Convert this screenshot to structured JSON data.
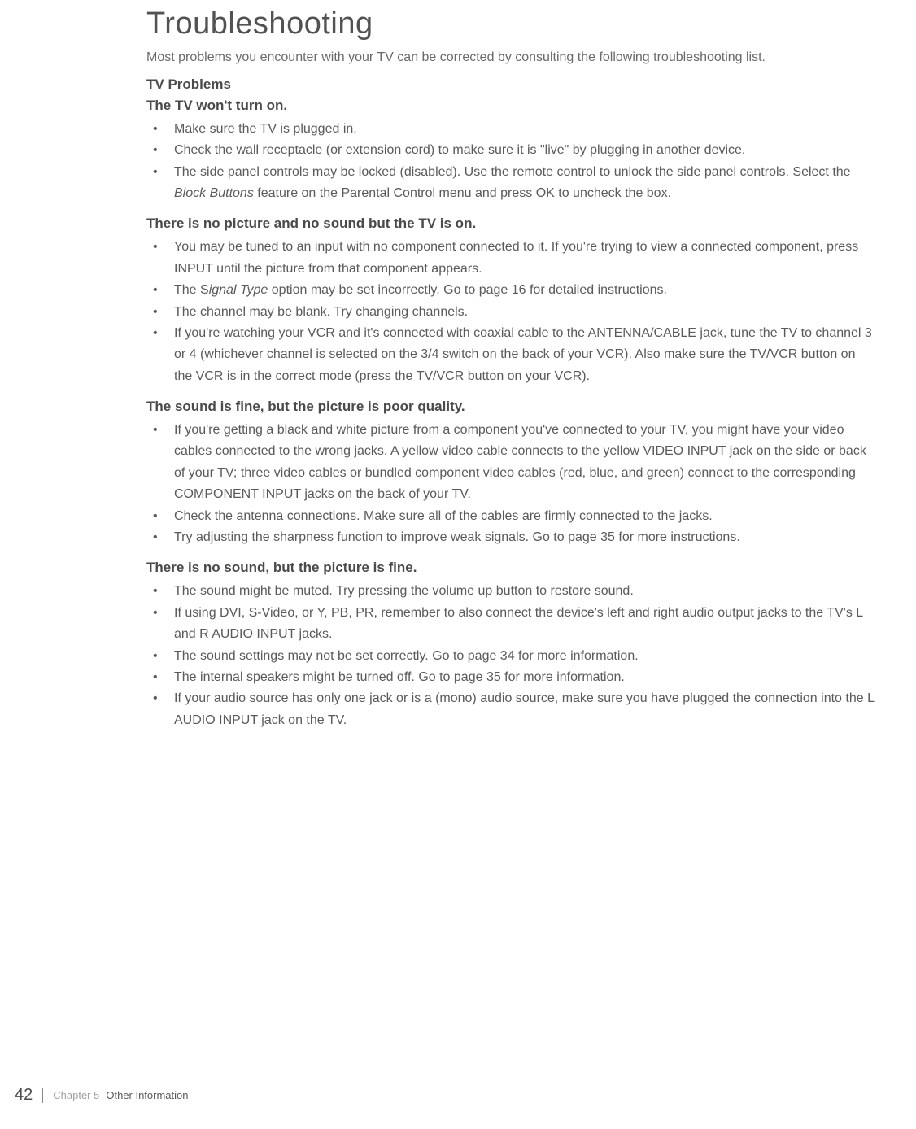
{
  "title": "Troubleshooting",
  "intro": "Most problems you encounter with your TV can be corrected by consulting the following troubleshooting list.",
  "section_header": "TV Problems",
  "sections": [
    {
      "heading": "The TV won't turn on.",
      "items_html": [
        "Make sure the TV is plugged in.",
        "Check the wall receptacle (or extension cord) to make sure it is \"live\" by plugging in another device.",
        "The side panel controls may be locked (disabled). Use the remote control to unlock the side panel controls. Select the <span class=\"italic\">Block Buttons</span> feature on the Parental Control menu and press OK to uncheck the box."
      ]
    },
    {
      "heading": "There is no picture and no sound but the TV is on.",
      "items_html": [
        "You may be tuned to an input with no component connected to it. If you're trying to view a connected component, press INPUT until the picture from that component appears.",
        "The S<span class=\"italic\">ignal Type</span> option may be set incorrectly. Go to page 16 for detailed instructions.",
        "The channel may be blank. Try changing channels.",
        "If you're watching your VCR and it's connected with coaxial cable to the ANTENNA/CABLE jack, tune the TV to channel 3 or 4 (whichever channel is selected on the 3/4 switch on the back of your VCR). Also make sure the TV/VCR button on the VCR is in the correct mode (press the TV/VCR button on your VCR)."
      ]
    },
    {
      "heading": "The sound is fine, but the picture is poor quality.",
      "items_html": [
        "If you're getting a black and white picture from a component you've connected to your TV, you might have your video cables connected to the wrong jacks. A yellow video cable connects to the yellow VIDEO INPUT jack on the side or back of your TV; three video cables or bundled component video cables (red, blue, and green) connect to the corresponding COMPONENT INPUT jacks on the back of your TV.",
        "Check the antenna connections. Make sure all of the cables are firmly connected to the jacks.",
        "Try adjusting the sharpness function to improve weak signals. Go to page 35 for more instructions."
      ]
    },
    {
      "heading": "There is no sound, but the picture is fine.",
      "items_html": [
        "The sound might be muted. Try pressing the volume up button to restore sound.",
        "If using DVI, S-Video, or Y, PB, PR, remember to also connect the device's left and right audio output jacks to the TV's L and R AUDIO INPUT jacks.",
        "The sound settings may not be set correctly. Go to page 34 for more information.",
        "The internal speakers might be turned off. Go to page 35 for more information.",
        "If your audio source has only one jack or is a (mono) audio source, make sure you have plugged the connection into the L AUDIO INPUT jack on the TV."
      ]
    }
  ],
  "footer": {
    "page_number": "42",
    "chapter_label": "Chapter 5",
    "chapter_name": "Other Information"
  }
}
